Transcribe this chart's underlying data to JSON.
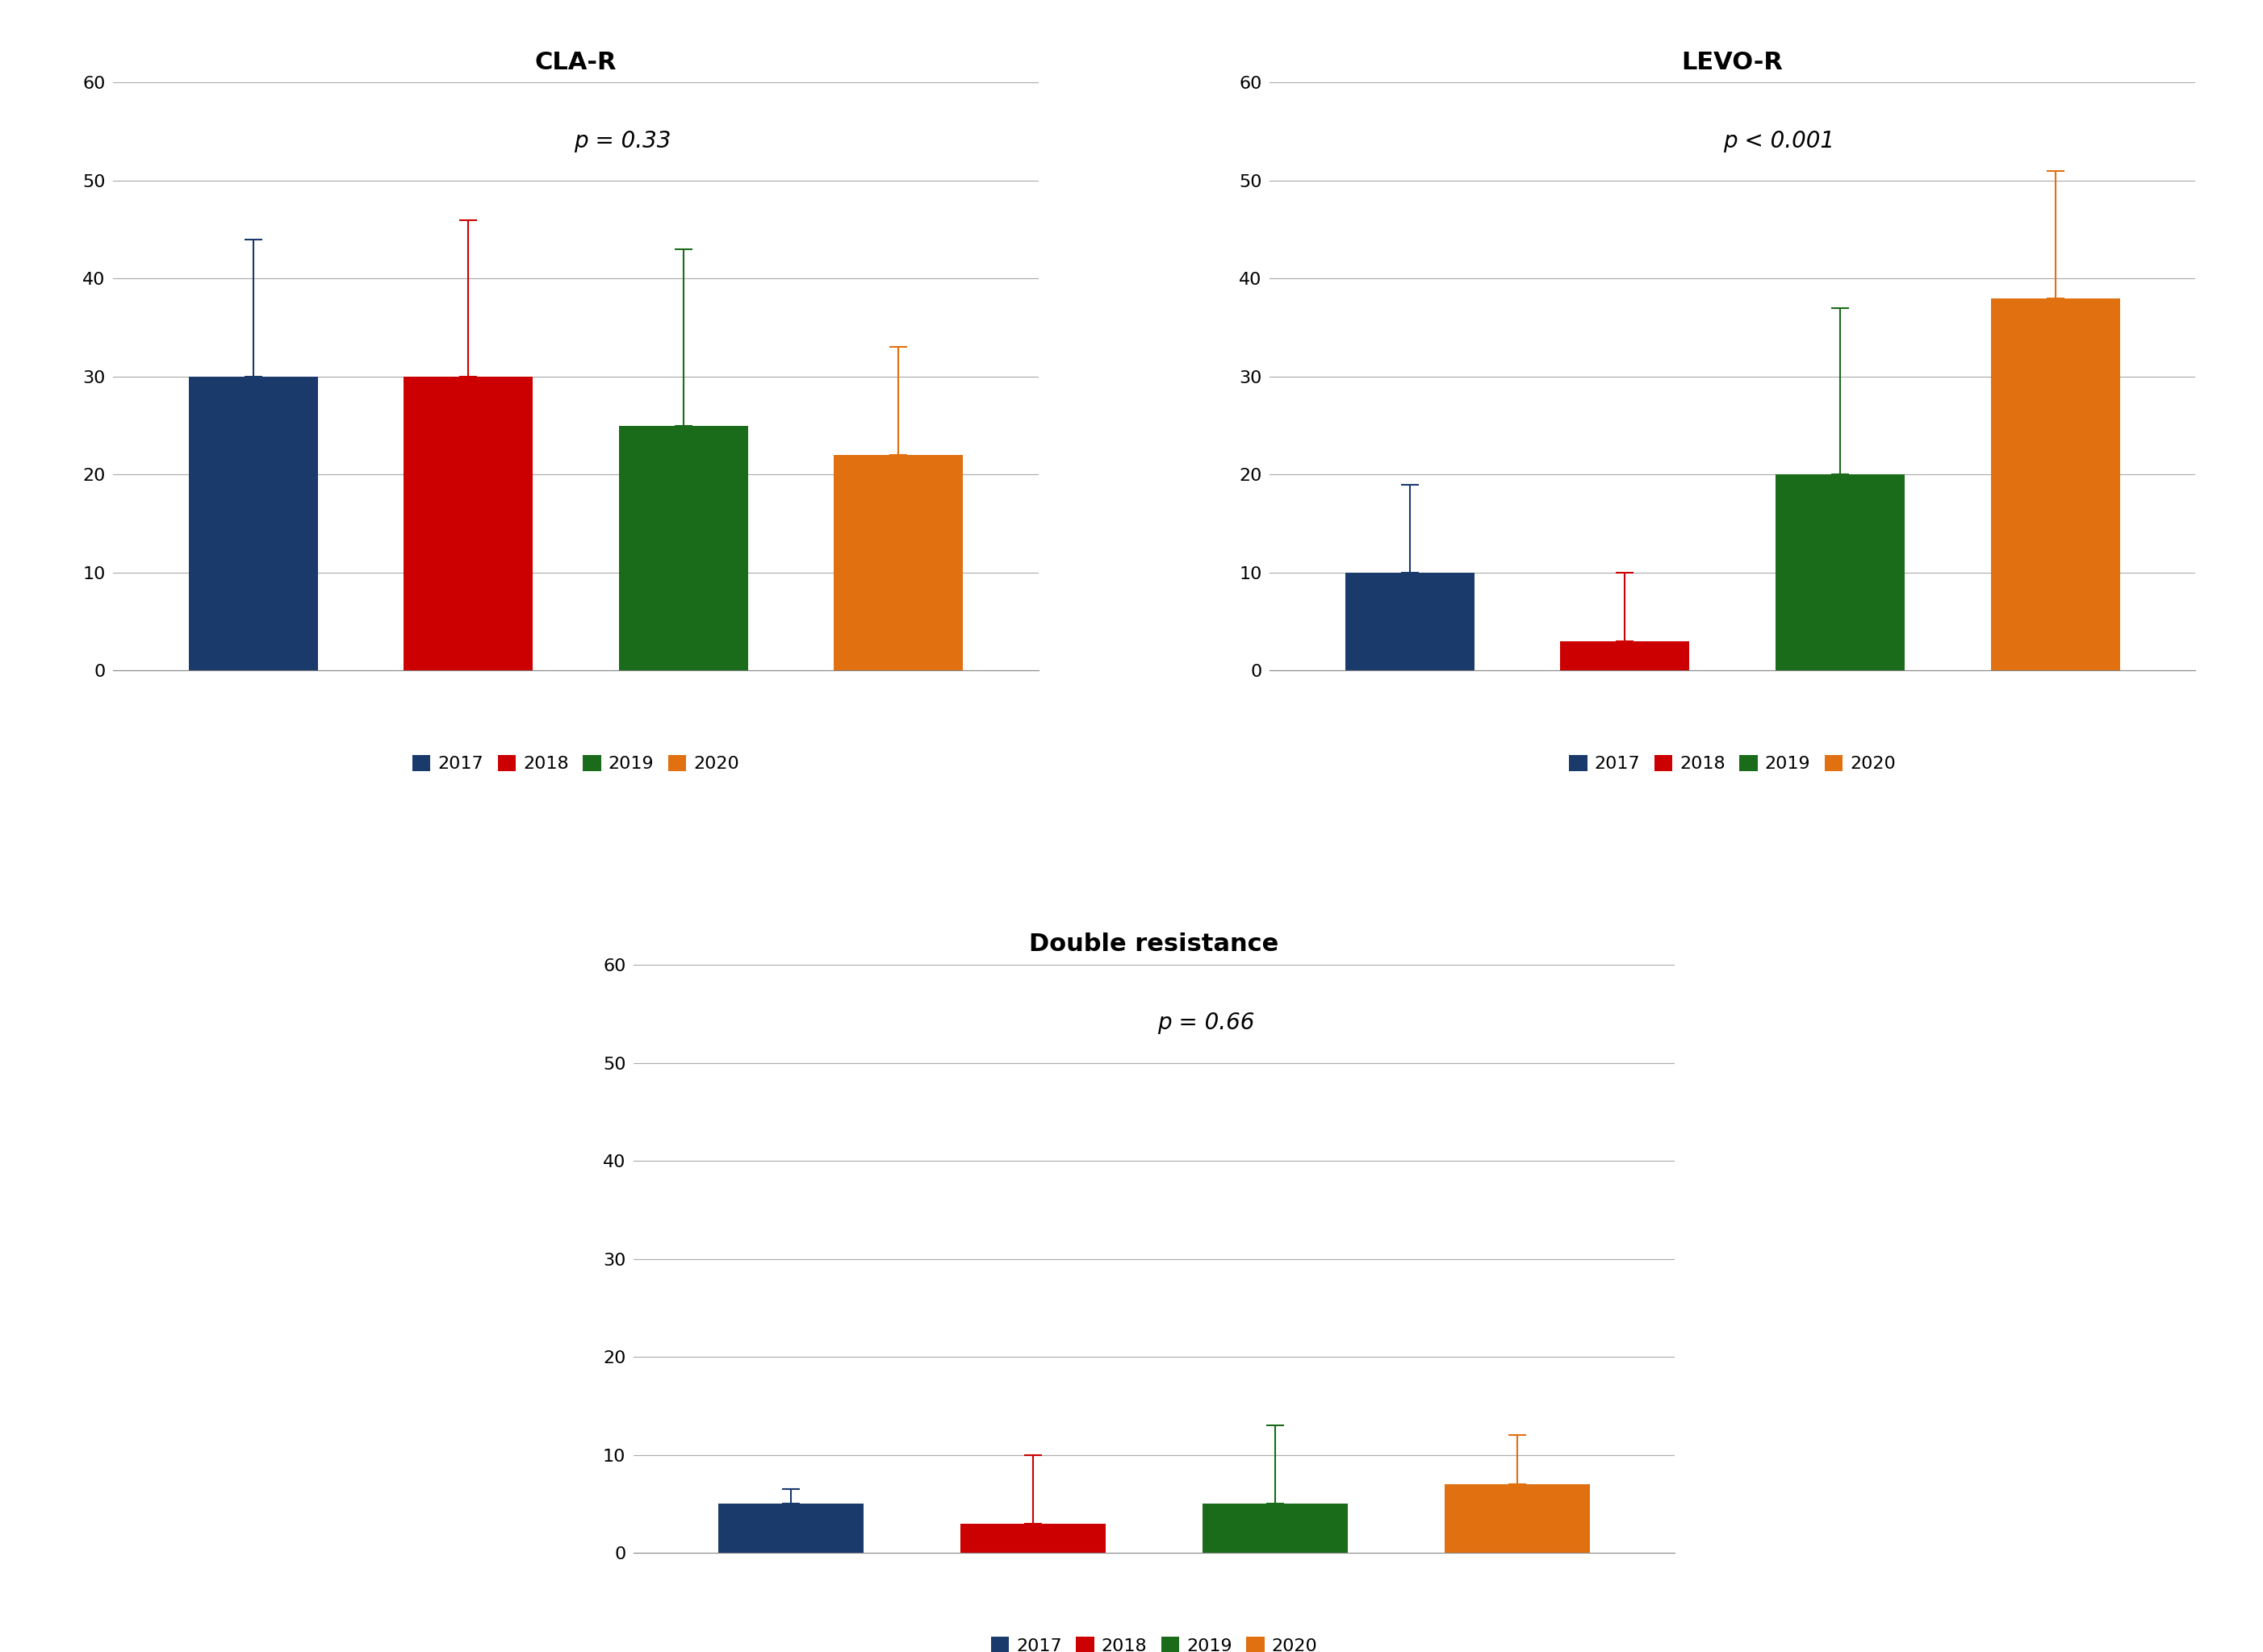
{
  "cla_r": {
    "title": "CLA-R",
    "p_text": "p = 0.33",
    "values": [
      30,
      30,
      25,
      22
    ],
    "errors": [
      14,
      16,
      18,
      11
    ],
    "ylim": [
      0,
      60
    ],
    "yticks": [
      0,
      10,
      20,
      30,
      40,
      50,
      60
    ]
  },
  "levo_r": {
    "title": "LEVO-R",
    "p_text": "p < 0.001",
    "values": [
      10,
      3,
      20,
      38
    ],
    "errors": [
      9,
      7,
      17,
      13
    ],
    "ylim": [
      0,
      60
    ],
    "yticks": [
      0,
      10,
      20,
      30,
      40,
      50,
      60
    ]
  },
  "double_r": {
    "title": "Double resistance",
    "p_text": "p = 0.66",
    "values": [
      5,
      3,
      5,
      7
    ],
    "errors": [
      1.5,
      7,
      8,
      5
    ],
    "ylim": [
      0,
      60
    ],
    "yticks": [
      0,
      10,
      20,
      30,
      40,
      50,
      60
    ]
  },
  "years": [
    "2017",
    "2018",
    "2019",
    "2020"
  ],
  "bar_colors": [
    "#1a3a6b",
    "#cc0000",
    "#1a6b1a",
    "#e07010"
  ],
  "bar_width": 0.6,
  "background_color": "#ffffff",
  "title_fontsize": 22,
  "p_fontsize": 20,
  "tick_fontsize": 16,
  "legend_fontsize": 16,
  "error_linewidth": 1.5,
  "capsize": 8
}
